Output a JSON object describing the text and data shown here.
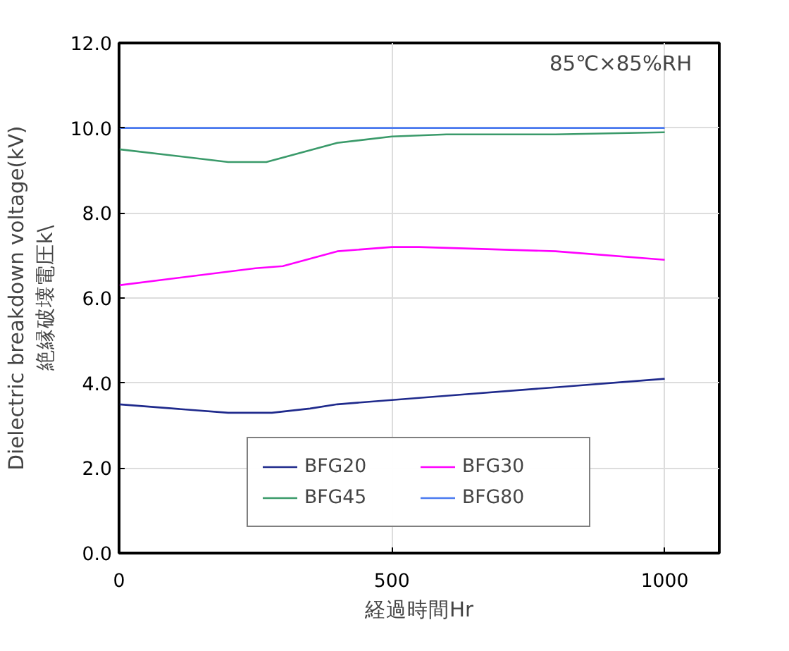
{
  "chart_data": {
    "type": "line",
    "xlabel": "経過時間Hr",
    "ylabel": "Dielectric breakdown voltage(kV)\n絶縁破壊電圧k\\",
    "annotations": [
      "85℃×85%RH"
    ],
    "xlim": [
      0,
      1100
    ],
    "xticks": [
      0,
      500,
      1000
    ],
    "ylim": [
      0,
      12
    ],
    "yticks": [
      {
        "value": 0,
        "label": "0.0"
      },
      {
        "value": 2,
        "label": "2.0"
      },
      {
        "value": 4,
        "label": "4.0"
      },
      {
        "value": 6,
        "label": "6.0"
      },
      {
        "value": 8,
        "label": "8.0"
      },
      {
        "value": 10,
        "label": "10.0"
      },
      {
        "value": 12,
        "label": "12.0"
      }
    ],
    "grid": true,
    "legend": "bottom",
    "line_style": "solid",
    "series": [
      {
        "name": "BFG20",
        "color": "#1f2a8c",
        "x": [
          0,
          200,
          280,
          350,
          400,
          450,
          550,
          600,
          800,
          1000
        ],
        "values": [
          3.5,
          3.3,
          3.3,
          3.4,
          3.5,
          3.55,
          3.65,
          3.7,
          3.9,
          4.1
        ]
      },
      {
        "name": "BFG30",
        "color": "#ff00ff",
        "x": [
          0,
          250,
          300,
          400,
          500,
          550,
          800,
          1000
        ],
        "values": [
          6.3,
          6.7,
          6.75,
          7.1,
          7.2,
          7.2,
          7.1,
          6.9
        ]
      },
      {
        "name": "BFG45",
        "color": "#3a9a6a",
        "x": [
          0,
          200,
          270,
          400,
          500,
          600,
          800,
          1000
        ],
        "values": [
          9.5,
          9.2,
          9.2,
          9.65,
          9.8,
          9.85,
          9.85,
          9.9
        ]
      },
      {
        "name": "BFG80",
        "color": "#4a7af0",
        "x": [
          0,
          1000
        ],
        "values": [
          10.0,
          10.0
        ]
      }
    ]
  }
}
